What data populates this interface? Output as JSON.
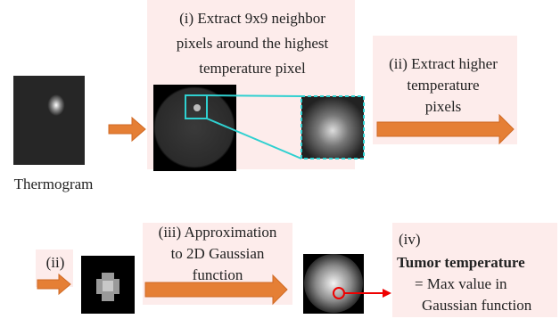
{
  "thermogram": {
    "label": "Thermogram"
  },
  "steps": [
    {
      "lines": [
        "(i) Extract 9x9 neighbor",
        "pixels around the highest",
        "temperature pixel"
      ]
    },
    {
      "lines": [
        "(ii) Extract higher",
        "temperature",
        "pixels"
      ]
    },
    {
      "lines": [
        "(ii)"
      ]
    },
    {
      "lines": [
        "(iii) Approximation",
        "to 2D Gaussian",
        "function"
      ]
    },
    {
      "lines": [
        "(iv)",
        "Tumor temperature",
        "= Max value in",
        "Gaussian function"
      ]
    }
  ]
}
